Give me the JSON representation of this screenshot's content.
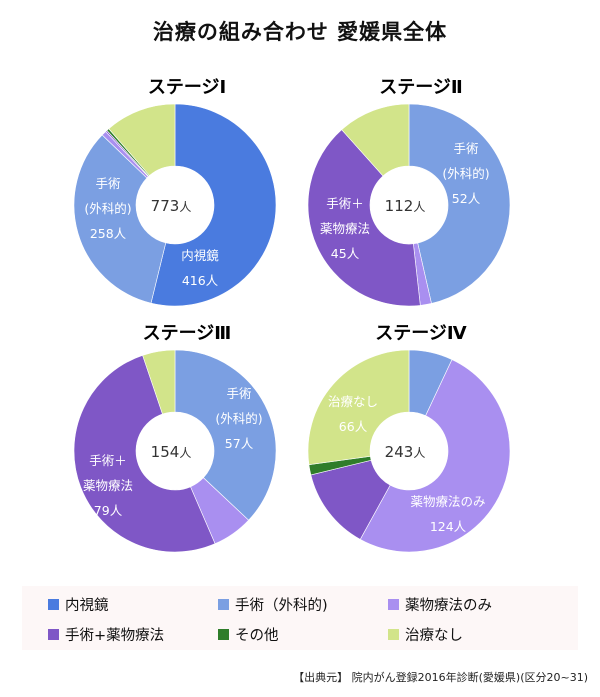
{
  "title": "治療の組み合わせ 愛媛県全体",
  "source": "【出典元】 院内がん登録2016年診断(愛媛県)(区分20~31)",
  "colors": {
    "endoscopy": "#4a7bdf",
    "surgery": "#7b9fe2",
    "drug_only": "#a98ff0",
    "surgery_drug": "#7f57c6",
    "other": "#2f7d2a",
    "none": "#d2e48a"
  },
  "legend": [
    {
      "key": "endoscopy",
      "label": "内視鏡"
    },
    {
      "key": "surgery",
      "label": "手術（外科的)"
    },
    {
      "key": "drug_only",
      "label": "薬物療法のみ"
    },
    {
      "key": "surgery_drug",
      "label": "手術+薬物療法"
    },
    {
      "key": "other",
      "label": "その他"
    },
    {
      "key": "none",
      "label": "治療なし"
    }
  ],
  "chart_data": [
    {
      "type": "pie",
      "title": "ステージⅠ",
      "total": 773,
      "center_label": "773",
      "unit": "人",
      "slices": [
        {
          "key": "endoscopy",
          "value": 416,
          "label_lines": [
            "内視鏡",
            "416人"
          ]
        },
        {
          "key": "surgery",
          "value": 258,
          "label_lines": [
            "手術",
            "(外科的)",
            "258人"
          ]
        },
        {
          "key": "drug_only",
          "value": 6,
          "label_lines": []
        },
        {
          "key": "surgery_drug",
          "value": 2,
          "label_lines": []
        },
        {
          "key": "other",
          "value": 3,
          "label_lines": []
        },
        {
          "key": "none",
          "value": 88,
          "label_lines": []
        }
      ]
    },
    {
      "type": "pie",
      "title": "ステージⅡ",
      "total": 112,
      "center_label": "112",
      "unit": "人",
      "slices": [
        {
          "key": "endoscopy",
          "value": 0,
          "label_lines": []
        },
        {
          "key": "surgery",
          "value": 52,
          "label_lines": [
            "手術",
            "(外科的)",
            "52人"
          ]
        },
        {
          "key": "drug_only",
          "value": 2,
          "label_lines": []
        },
        {
          "key": "surgery_drug",
          "value": 45,
          "label_lines": [
            "手術＋",
            "薬物療法",
            "45人"
          ]
        },
        {
          "key": "other",
          "value": 0,
          "label_lines": []
        },
        {
          "key": "none",
          "value": 13,
          "label_lines": []
        }
      ]
    },
    {
      "type": "pie",
      "title": "ステージⅢ",
      "total": 154,
      "center_label": "154",
      "unit": "人",
      "slices": [
        {
          "key": "endoscopy",
          "value": 0,
          "label_lines": []
        },
        {
          "key": "surgery",
          "value": 57,
          "label_lines": [
            "手術",
            "(外科的)",
            "57人"
          ]
        },
        {
          "key": "drug_only",
          "value": 10,
          "label_lines": []
        },
        {
          "key": "surgery_drug",
          "value": 79,
          "label_lines": [
            "手術＋",
            "薬物療法",
            "79人"
          ]
        },
        {
          "key": "other",
          "value": 0,
          "label_lines": []
        },
        {
          "key": "none",
          "value": 8,
          "label_lines": []
        }
      ]
    },
    {
      "type": "pie",
      "title": "ステージⅣ",
      "total": 243,
      "center_label": "243",
      "unit": "人",
      "slices": [
        {
          "key": "endoscopy",
          "value": 0,
          "label_lines": []
        },
        {
          "key": "surgery",
          "value": 17,
          "label_lines": []
        },
        {
          "key": "drug_only",
          "value": 124,
          "label_lines": [
            "薬物療法のみ",
            "124人"
          ]
        },
        {
          "key": "surgery_drug",
          "value": 32,
          "label_lines": []
        },
        {
          "key": "other",
          "value": 4,
          "label_lines": []
        },
        {
          "key": "none",
          "value": 66,
          "label_lines": [
            "治療なし",
            "66人"
          ]
        }
      ]
    }
  ]
}
